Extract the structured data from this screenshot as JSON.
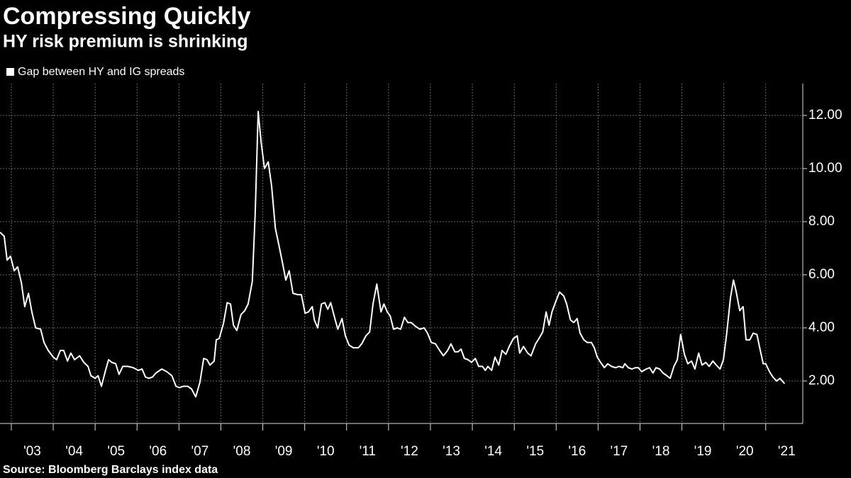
{
  "chart_data": {
    "type": "line",
    "title": "Compressing Quickly",
    "subtitle": "HY risk premium is shrinking",
    "source": "Source: Bloomberg Barclays index data",
    "x": [
      2002.73,
      2002.83,
      2002.9,
      2002.98,
      2003.07,
      2003.15,
      2003.24,
      2003.32,
      2003.41,
      2003.49,
      2003.58,
      2003.7,
      2003.78,
      2003.88,
      2004.0,
      2004.08,
      2004.17,
      2004.25,
      2004.34,
      2004.42,
      2004.51,
      2004.63,
      2004.73,
      2004.83,
      2004.9,
      2005.0,
      2005.07,
      2005.15,
      2005.24,
      2005.32,
      2005.4,
      2005.49,
      2005.57,
      2005.66,
      2005.78,
      2005.91,
      2006.03,
      2006.12,
      2006.2,
      2006.28,
      2006.37,
      2006.45,
      2006.59,
      2006.71,
      2006.83,
      2006.93,
      2007.01,
      2007.1,
      2007.21,
      2007.3,
      2007.4,
      2007.5,
      2007.59,
      2007.67,
      2007.74,
      2007.84,
      2007.89,
      2007.96,
      2008.06,
      2008.15,
      2008.23,
      2008.3,
      2008.38,
      2008.48,
      2008.57,
      2008.65,
      2008.75,
      2008.82,
      2008.89,
      2008.96,
      2009.04,
      2009.13,
      2009.21,
      2009.3,
      2009.38,
      2009.47,
      2009.55,
      2009.63,
      2009.72,
      2009.84,
      2009.92,
      2010.01,
      2010.09,
      2010.18,
      2010.23,
      2010.31,
      2010.4,
      2010.48,
      2010.55,
      2010.62,
      2010.72,
      2010.79,
      2010.89,
      2010.97,
      2011.06,
      2011.16,
      2011.28,
      2011.36,
      2011.46,
      2011.55,
      2011.63,
      2011.72,
      2011.82,
      2011.89,
      2011.97,
      2012.04,
      2012.12,
      2012.21,
      2012.29,
      2012.38,
      2012.46,
      2012.54,
      2012.65,
      2012.75,
      2012.85,
      2012.93,
      2013.02,
      2013.12,
      2013.22,
      2013.31,
      2013.41,
      2013.49,
      2013.58,
      2013.66,
      2013.73,
      2013.81,
      2013.9,
      2013.98,
      2014.07,
      2014.15,
      2014.24,
      2014.31,
      2014.37,
      2014.46,
      2014.54,
      2014.63,
      2014.71,
      2014.8,
      2014.88,
      2014.98,
      2015.07,
      2015.13,
      2015.22,
      2015.32,
      2015.4,
      2015.51,
      2015.59,
      2015.68,
      2015.76,
      2015.83,
      2015.9,
      2015.98,
      2016.08,
      2016.18,
      2016.25,
      2016.34,
      2016.42,
      2016.5,
      2016.57,
      2016.66,
      2016.74,
      2016.84,
      2016.91,
      2016.98,
      2017.06,
      2017.15,
      2017.23,
      2017.32,
      2017.42,
      2017.5,
      2017.59,
      2017.64,
      2017.72,
      2017.81,
      2017.89,
      2017.96,
      2018.04,
      2018.15,
      2018.23,
      2018.31,
      2018.38,
      2018.47,
      2018.55,
      2018.64,
      2018.72,
      2018.81,
      2018.89,
      2018.97,
      2019.06,
      2019.14,
      2019.23,
      2019.31,
      2019.4,
      2019.48,
      2019.57,
      2019.65,
      2019.74,
      2019.82,
      2019.91,
      2019.99,
      2020.07,
      2020.16,
      2020.23,
      2020.29,
      2020.38,
      2020.46,
      2020.53,
      2020.62,
      2020.7,
      2020.79,
      2020.87,
      2020.94,
      2021.0,
      2021.09,
      2021.17,
      2021.26,
      2021.34,
      2021.45
    ],
    "series": [
      {
        "name": "Gap between HY and IG spreads",
        "color": "#ffffff",
        "values": [
          7.6,
          7.45,
          6.55,
          6.7,
          6.15,
          6.3,
          5.7,
          4.8,
          5.3,
          4.6,
          4.0,
          3.95,
          3.45,
          3.15,
          2.9,
          2.8,
          3.15,
          3.15,
          2.75,
          3.05,
          2.8,
          2.95,
          2.7,
          2.55,
          2.2,
          2.1,
          2.2,
          1.8,
          2.35,
          2.8,
          2.7,
          2.65,
          2.25,
          2.55,
          2.55,
          2.5,
          2.4,
          2.45,
          2.15,
          2.1,
          2.15,
          2.3,
          2.45,
          2.35,
          2.2,
          1.8,
          1.75,
          1.8,
          1.8,
          1.7,
          1.4,
          1.95,
          2.85,
          2.8,
          2.6,
          2.75,
          3.55,
          3.6,
          4.15,
          4.95,
          4.9,
          4.1,
          3.9,
          4.5,
          4.65,
          4.9,
          5.75,
          8.35,
          12.15,
          11.0,
          10.0,
          10.25,
          9.35,
          7.75,
          7.15,
          6.45,
          5.8,
          6.15,
          5.3,
          5.25,
          5.25,
          4.55,
          4.6,
          4.8,
          4.3,
          4.0,
          4.9,
          4.95,
          4.7,
          4.95,
          4.35,
          3.95,
          4.35,
          3.7,
          3.35,
          3.25,
          3.25,
          3.4,
          3.7,
          3.85,
          4.9,
          5.65,
          4.6,
          4.9,
          4.6,
          4.45,
          3.95,
          4.0,
          3.95,
          4.4,
          4.2,
          4.2,
          4.05,
          3.95,
          4.0,
          3.8,
          3.45,
          3.4,
          3.15,
          2.95,
          3.15,
          3.4,
          3.1,
          3.1,
          3.2,
          2.85,
          2.8,
          2.7,
          2.85,
          2.55,
          2.55,
          2.4,
          2.55,
          2.4,
          2.9,
          2.6,
          3.15,
          3.0,
          3.3,
          3.6,
          3.7,
          3.05,
          3.3,
          3.05,
          2.95,
          3.4,
          3.6,
          3.85,
          4.6,
          4.1,
          4.6,
          4.95,
          5.35,
          5.2,
          4.9,
          4.3,
          4.2,
          4.35,
          3.8,
          3.55,
          3.45,
          3.45,
          3.25,
          2.9,
          2.7,
          2.5,
          2.65,
          2.55,
          2.5,
          2.55,
          2.5,
          2.65,
          2.5,
          2.45,
          2.5,
          2.5,
          2.35,
          2.45,
          2.5,
          2.3,
          2.5,
          2.45,
          2.3,
          2.2,
          2.1,
          2.55,
          2.8,
          3.75,
          3.0,
          2.65,
          2.75,
          2.45,
          3.05,
          2.6,
          2.7,
          2.55,
          2.75,
          2.6,
          2.45,
          2.8,
          3.8,
          5.15,
          5.8,
          5.4,
          4.65,
          4.8,
          3.55,
          3.55,
          3.8,
          3.75,
          3.15,
          2.65,
          2.65,
          2.35,
          2.15,
          2.0,
          2.1,
          1.9
        ]
      }
    ],
    "xlim": [
      2002.73,
      2021.85
    ],
    "xticks": [
      {
        "value": 2003,
        "label": "'03"
      },
      {
        "value": 2004,
        "label": "'04"
      },
      {
        "value": 2005,
        "label": "'05"
      },
      {
        "value": 2006,
        "label": "'06"
      },
      {
        "value": 2007,
        "label": "'07"
      },
      {
        "value": 2008,
        "label": "'08"
      },
      {
        "value": 2009,
        "label": "'09"
      },
      {
        "value": 2010,
        "label": "'10"
      },
      {
        "value": 2011,
        "label": "'11"
      },
      {
        "value": 2012,
        "label": "'12"
      },
      {
        "value": 2013,
        "label": "'13"
      },
      {
        "value": 2014,
        "label": "'14"
      },
      {
        "value": 2015,
        "label": "'15"
      },
      {
        "value": 2016,
        "label": "'16"
      },
      {
        "value": 2017,
        "label": "'17"
      },
      {
        "value": 2018,
        "label": "'18"
      },
      {
        "value": 2019,
        "label": "'19"
      },
      {
        "value": 2020,
        "label": "'20"
      },
      {
        "value": 2021,
        "label": "'21"
      }
    ],
    "ylim": [
      0.4,
      13.2
    ],
    "yticks": [
      {
        "value": 2,
        "label": "2.00"
      },
      {
        "value": 4,
        "label": "4.00"
      },
      {
        "value": 6,
        "label": "6.00"
      },
      {
        "value": 8,
        "label": "8.00"
      },
      {
        "value": 10,
        "label": "10.00"
      },
      {
        "value": 12,
        "label": "12.00"
      }
    ],
    "grid": true
  }
}
